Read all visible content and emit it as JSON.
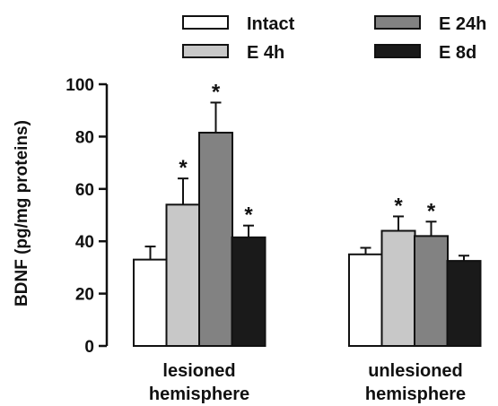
{
  "chart_data": {
    "type": "bar",
    "ylabel": "BDNF (pg/mg proteins)",
    "ylim": [
      0,
      100
    ],
    "yticks": [
      0,
      20,
      40,
      60,
      80,
      100
    ],
    "categories": [
      {
        "line1": "lesioned",
        "line2": "hemisphere"
      },
      {
        "line1": "unlesioned",
        "line2": "hemisphere"
      }
    ],
    "series": [
      {
        "name": "Intact",
        "color": "#ffffff",
        "values": [
          33,
          35
        ],
        "errors": [
          5,
          2.5
        ],
        "significant": [
          false,
          false
        ]
      },
      {
        "name": "E 4h",
        "color": "#c8c8c8",
        "values": [
          54,
          44
        ],
        "errors": [
          10,
          5.5
        ],
        "significant": [
          true,
          true
        ]
      },
      {
        "name": "E 24h",
        "color": "#828282",
        "values": [
          81.5,
          42
        ],
        "errors": [
          11.5,
          5.5
        ],
        "significant": [
          true,
          true
        ]
      },
      {
        "name": "E 8d",
        "color": "#1a1a1a",
        "values": [
          41.5,
          32.5
        ],
        "errors": [
          4.5,
          2
        ],
        "significant": [
          true,
          false
        ]
      }
    ],
    "significance_marker": "*",
    "legend_placement": "top"
  }
}
